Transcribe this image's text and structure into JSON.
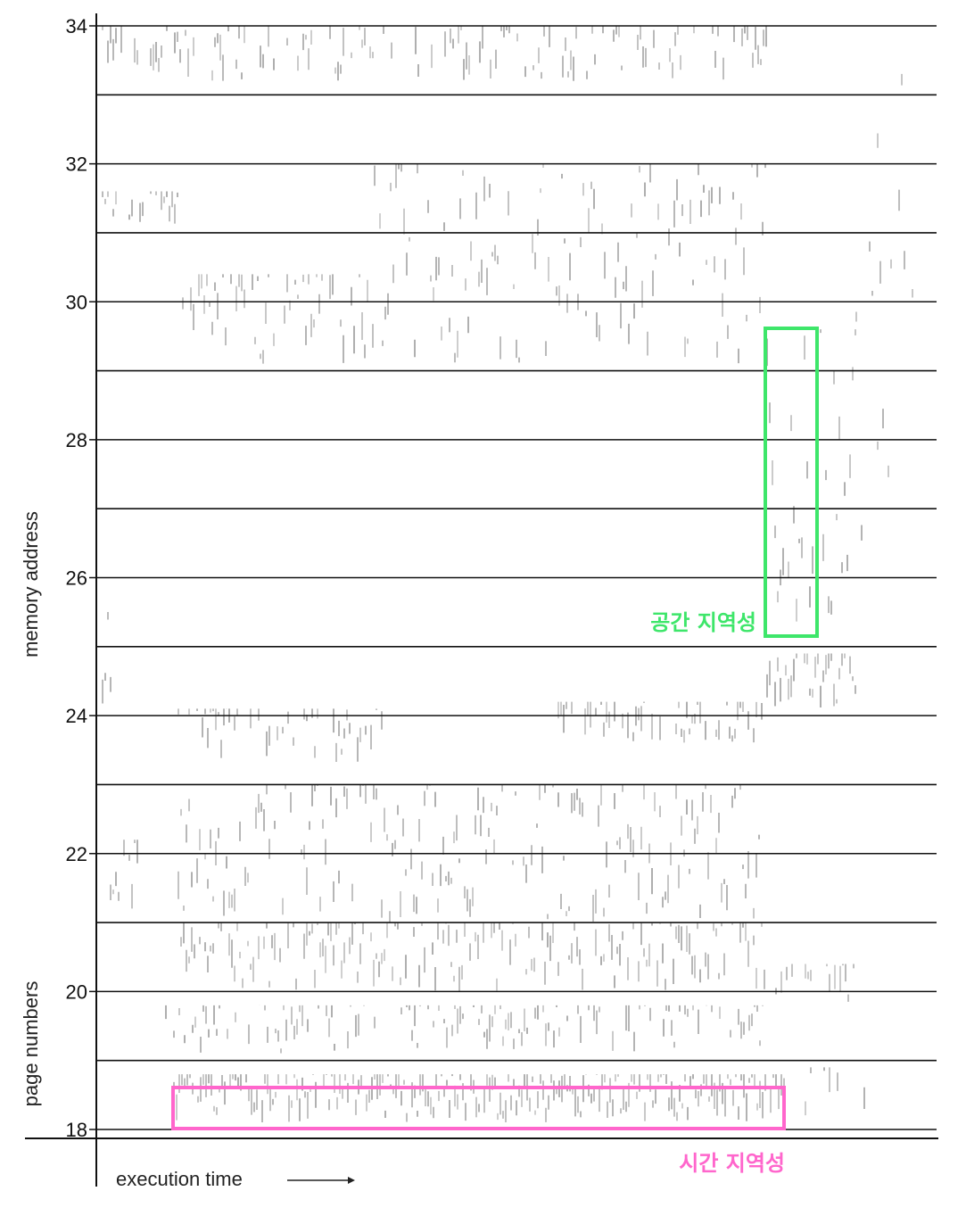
{
  "chart_data": {
    "type": "scatter",
    "ylabel_upper": "memory address",
    "ylabel_lower": "page numbers",
    "xlabel": "execution time",
    "xlabel_arrow": "→",
    "y_ticks": [
      "34",
      "32",
      "30",
      "28",
      "26",
      "24",
      "22",
      "20",
      "18"
    ],
    "ylim": [
      18,
      34
    ],
    "grid": true,
    "annotations": [
      {
        "label": "공간 지역성",
        "color": "#3ee66a",
        "meaning": "spatial locality"
      },
      {
        "label": "시간 지역성",
        "color": "#ff66cc",
        "meaning": "temporal locality"
      }
    ],
    "colors": {
      "ink": "#111111",
      "trace": "#555555",
      "spatial": "#3ee66a",
      "temporal": "#ff66cc"
    }
  }
}
